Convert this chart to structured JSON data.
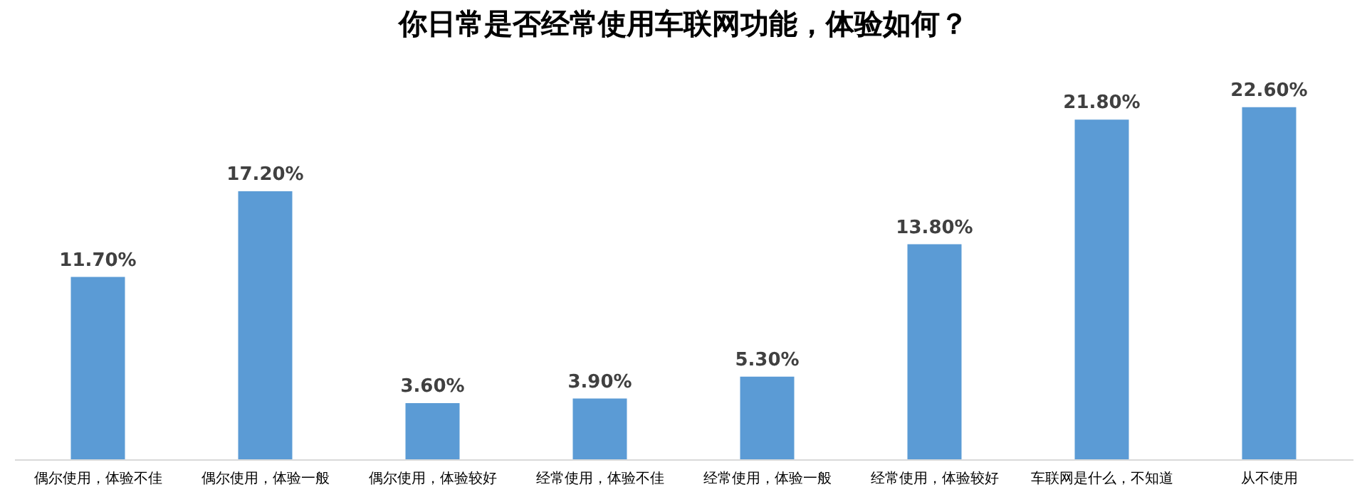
{
  "chart_data": {
    "type": "bar",
    "title": "你日常是否经常使用车联网功能，体验如何？",
    "categories": [
      "偶尔使用，体验不佳",
      "偶尔使用，体验一般",
      "偶尔使用，体验较好",
      "经常使用，体验不佳",
      "经常使用，体验一般",
      "经常使用，体验较好",
      "车联网是什么，不知道",
      "从不使用"
    ],
    "values": [
      11.7,
      17.2,
      3.6,
      3.9,
      5.3,
      13.8,
      21.8,
      22.6
    ],
    "value_labels": [
      "11.70%",
      "17.20%",
      "3.60%",
      "3.90%",
      "5.30%",
      "13.80%",
      "21.80%",
      "22.60%"
    ],
    "color": "#5b9bd5",
    "grid": false
  }
}
